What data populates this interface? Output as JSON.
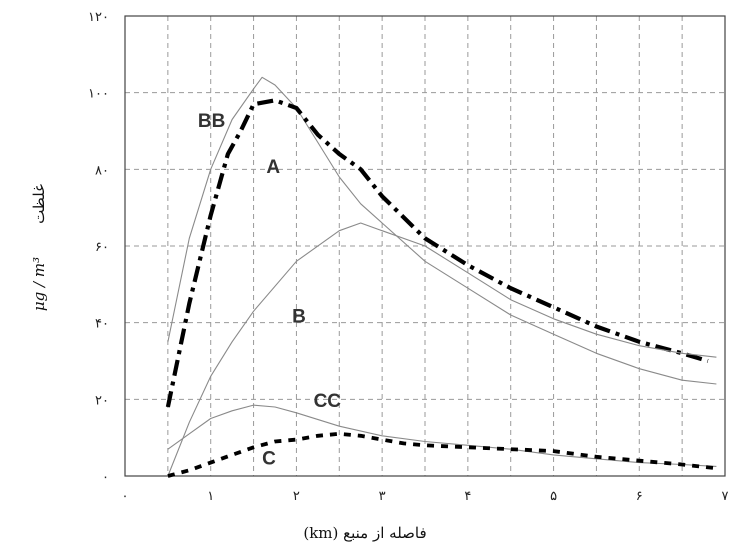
{
  "chart_data": {
    "type": "line",
    "xlabel": "(km) فاصله از منبع",
    "ylabel_text": "غلظت",
    "ylabel_unit": "μg / m³",
    "xlim": [
      0,
      7
    ],
    "ylim": [
      0,
      120
    ],
    "x_ticks": [
      {
        "value": 0,
        "label": "۰"
      },
      {
        "value": 1,
        "label": "۱"
      },
      {
        "value": 2,
        "label": "۲"
      },
      {
        "value": 3,
        "label": "۳"
      },
      {
        "value": 4,
        "label": "۴"
      },
      {
        "value": 5,
        "label": "۵"
      },
      {
        "value": 6,
        "label": "۶"
      },
      {
        "value": 7,
        "label": "۷"
      }
    ],
    "y_ticks": [
      {
        "value": 0,
        "label": "۰"
      },
      {
        "value": 20,
        "label": "۲۰"
      },
      {
        "value": 40,
        "label": "۴۰"
      },
      {
        "value": 60,
        "label": "۶۰"
      },
      {
        "value": 80,
        "label": "۸۰"
      },
      {
        "value": 100,
        "label": "۱۰۰"
      },
      {
        "value": 120,
        "label": "۱۲۰"
      }
    ],
    "grid": true,
    "series": [
      {
        "name": "A",
        "style": "solid-thin",
        "color": "#8a8a8a",
        "x": [
          0.5,
          0.75,
          1.0,
          1.25,
          1.5,
          1.6,
          1.75,
          2.0,
          2.25,
          2.5,
          2.75,
          3.0,
          3.5,
          4.0,
          4.5,
          5.0,
          5.5,
          6.0,
          6.5,
          6.9
        ],
        "y": [
          35,
          62,
          80,
          93,
          101,
          104,
          102,
          96,
          87,
          78,
          71,
          66,
          56,
          49,
          42,
          37,
          32,
          28,
          25,
          24
        ]
      },
      {
        "name": "BB",
        "style": "dash-dot-thick",
        "color": "#000000",
        "x": [
          0.5,
          0.75,
          1.0,
          1.2,
          1.35,
          1.5,
          1.75,
          2.0,
          2.25,
          2.5,
          2.75,
          3.0,
          3.5,
          4.0,
          4.5,
          5.0,
          5.5,
          6.0,
          6.5,
          6.8
        ],
        "y": [
          18,
          45,
          68,
          84,
          90,
          97,
          98,
          96,
          89,
          84,
          80,
          73,
          62,
          55,
          49,
          44,
          39,
          35,
          32,
          30
        ]
      },
      {
        "name": "B",
        "style": "solid-thin",
        "color": "#8a8a8a",
        "x": [
          0.5,
          0.75,
          1.0,
          1.25,
          1.5,
          2.0,
          2.5,
          2.75,
          3.0,
          3.5,
          4.0,
          4.5,
          5.0,
          5.5,
          6.0,
          6.5,
          6.9
        ],
        "y": [
          0,
          14,
          26,
          35,
          43,
          56,
          64,
          66,
          64,
          60,
          53,
          46,
          41,
          37,
          34,
          32,
          31
        ]
      },
      {
        "name": "CC",
        "style": "solid-thin",
        "color": "#8a8a8a",
        "x": [
          0.5,
          0.75,
          1.0,
          1.25,
          1.5,
          1.75,
          2.0,
          2.5,
          3.0,
          3.5,
          4.0,
          4.5,
          5.0,
          5.5,
          6.0,
          6.5,
          6.9
        ],
        "y": [
          7,
          11,
          15,
          17,
          18.5,
          18,
          16.5,
          13,
          10.5,
          9,
          8,
          7,
          5.5,
          4.5,
          3.5,
          3,
          2.5
        ]
      },
      {
        "name": "C",
        "style": "dotted-thick",
        "color": "#000000",
        "x": [
          0.5,
          0.75,
          1.0,
          1.25,
          1.5,
          1.75,
          2.0,
          2.25,
          2.5,
          2.75,
          3.0,
          3.25,
          3.5,
          4.0,
          4.5,
          5.0,
          5.5,
          6.0,
          6.5,
          6.9
        ],
        "y": [
          0,
          1.5,
          3.5,
          5.5,
          7.5,
          9,
          9.5,
          10.5,
          11,
          10.5,
          9.5,
          8.5,
          8,
          7.5,
          7,
          6.5,
          5,
          4,
          3,
          2
        ]
      }
    ],
    "annotations": [
      {
        "text": "BB",
        "x": 0.85,
        "y": 91
      },
      {
        "text": "A",
        "x": 1.65,
        "y": 79
      },
      {
        "text": "B",
        "x": 1.95,
        "y": 40
      },
      {
        "text": "CC",
        "x": 2.2,
        "y": 18
      },
      {
        "text": "C",
        "x": 1.6,
        "y": 3
      }
    ]
  }
}
